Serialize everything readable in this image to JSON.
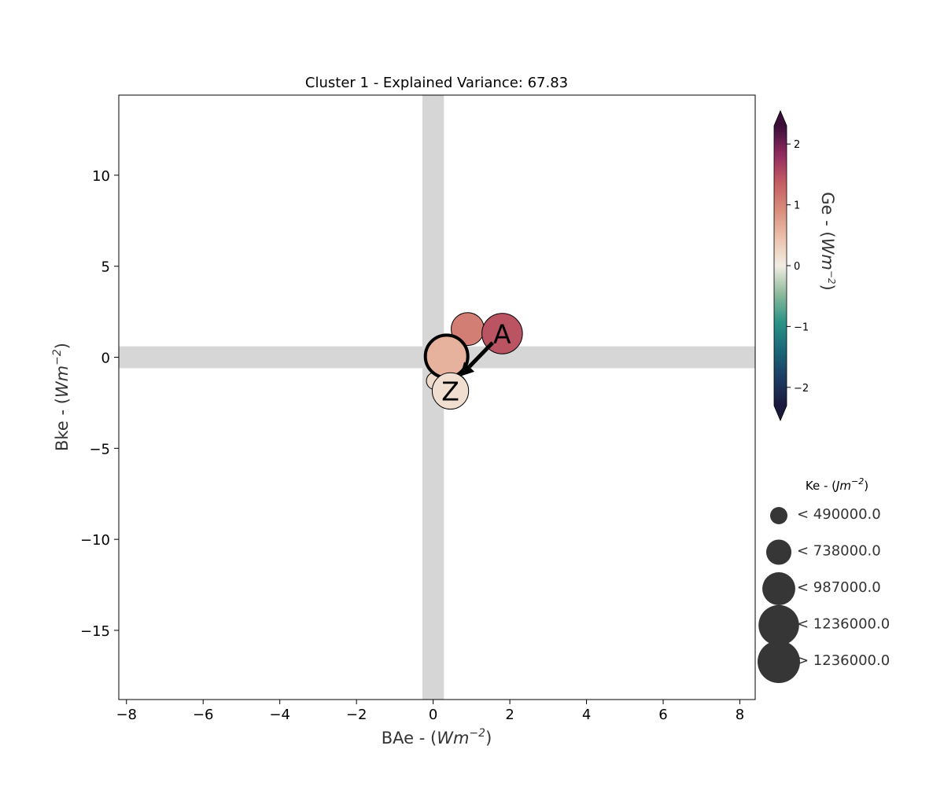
{
  "chart_data": {
    "type": "scatter",
    "title": "Cluster 1 - Explained Variance: 67.83",
    "xlabel": {
      "base": "BAe - (",
      "var": "Wm",
      "exp": "−2",
      "close": ")"
    },
    "ylabel": {
      "base": "Bke - (",
      "var": "Wm",
      "exp": "−2",
      "close": ")"
    },
    "xlim": [
      -8.2,
      8.4
    ],
    "ylim": [
      -18.8,
      14.4
    ],
    "xticks": [
      -8,
      -6,
      -4,
      -2,
      0,
      2,
      4,
      6,
      8
    ],
    "xtick_labels": [
      "−8",
      "−6",
      "−4",
      "−2",
      "0",
      "2",
      "4",
      "6",
      "8"
    ],
    "yticks": [
      10,
      5,
      0,
      -5,
      -10,
      -15
    ],
    "ytick_labels": [
      "10",
      "5",
      "0",
      "−5",
      "−10",
      "−15"
    ],
    "shaded_bands": {
      "vertical_x": [
        -0.28,
        0.28
      ],
      "horizontal_y": [
        -0.6,
        0.6
      ],
      "color": "#d6d6d6"
    },
    "points": [
      {
        "x": 0.9,
        "y": 1.55,
        "ge": 1.05,
        "ke": 987000,
        "label": "",
        "highlight": false
      },
      {
        "x": 0.05,
        "y": -1.3,
        "ge": 0.2,
        "ke": 490000,
        "label": "",
        "highlight": false
      },
      {
        "x": 0.55,
        "y": -1.6,
        "ge": 1.0,
        "ke": 738000,
        "label": "",
        "highlight": false
      },
      {
        "x": 0.35,
        "y": 0.05,
        "ge": 0.6,
        "ke": 1300000,
        "label": "",
        "highlight": true
      },
      {
        "x": 1.8,
        "y": 1.3,
        "ge": 1.45,
        "ke": 1236000,
        "label": "A",
        "highlight": false
      },
      {
        "x": 0.45,
        "y": -1.85,
        "ge": 0.15,
        "ke": 1100000,
        "label": "Z",
        "highlight": false
      }
    ],
    "arrow": {
      "from": [
        1.55,
        0.8
      ],
      "to": [
        0.7,
        -1.05
      ]
    },
    "colorbar": {
      "label": {
        "base": "Ge - (",
        "var": "Wm",
        "exp": "−2",
        "close": ")"
      },
      "range": [
        -2.3,
        2.3
      ],
      "ticks": [
        2,
        1,
        0,
        -1,
        -2
      ],
      "tick_labels": [
        "2",
        "1",
        "0",
        "−1",
        "−2"
      ],
      "colormap": [
        "#1b1a3c",
        "#1c3d63",
        "#1a6879",
        "#2b9486",
        "#8fba9d",
        "#f2ede3",
        "#ecc1ad",
        "#d98c7a",
        "#c35b63",
        "#8e2a5e",
        "#3b0f38"
      ]
    },
    "size_legend": {
      "title": {
        "base": "Ke - (",
        "var": "Jm",
        "exp": "−2",
        "close": ")"
      },
      "entries": [
        {
          "label": "< 490000.0",
          "ke": 490000
        },
        {
          "label": "< 738000.0",
          "ke": 738000
        },
        {
          "label": "< 987000.0",
          "ke": 987000
        },
        {
          "label": "< 1236000.0",
          "ke": 1236000
        },
        {
          "label": "> 1236000.0",
          "ke": 1300000
        }
      ],
      "marker_color": "#363636"
    }
  }
}
